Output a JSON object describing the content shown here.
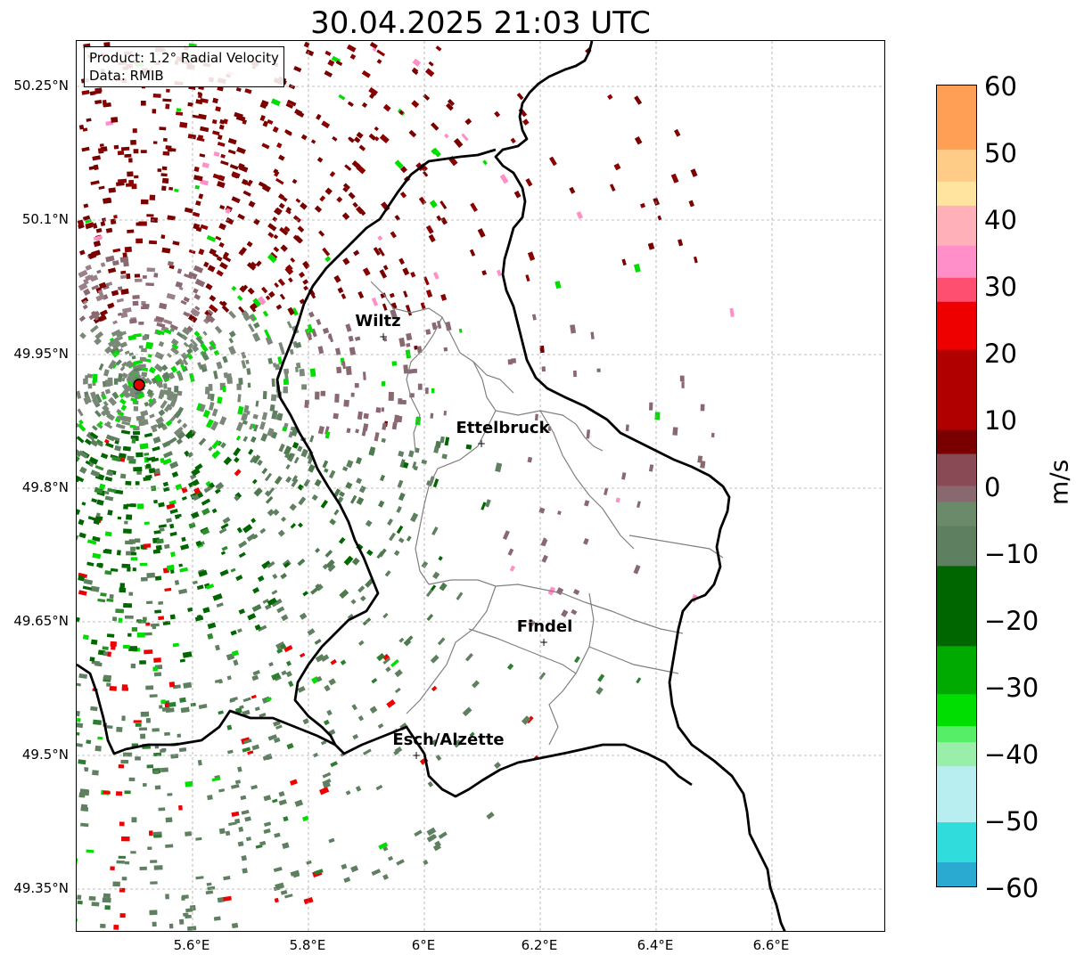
{
  "title": "30.04.2025 21:03 UTC",
  "info": {
    "product": "Product: 1.2° Radial Velocity",
    "data": "Data: RMIB"
  },
  "axes": {
    "lat_ticks": [
      "50.25°N",
      "50.1°N",
      "49.95°N",
      "49.8°N",
      "49.65°N",
      "49.5°N",
      "49.35°N"
    ],
    "lon_ticks": [
      "5.6°E",
      "5.8°E",
      "6°E",
      "6.2°E",
      "6.4°E",
      "6.6°E"
    ]
  },
  "cities": [
    {
      "name": "Wiltz"
    },
    {
      "name": "Ettelbruck"
    },
    {
      "name": "Findel"
    },
    {
      "name": "Esch/Alzette"
    }
  ],
  "radar_site_color": "#e00000",
  "colorbar": {
    "unit": "m/s",
    "ticks": [
      "60",
      "50",
      "40",
      "30",
      "20",
      "10",
      "0",
      "−10",
      "−20",
      "−30",
      "−40",
      "−50",
      "−60"
    ],
    "colors": {
      "orange": "#ff9f55",
      "pink": "#ff8fc8",
      "red": "#ee0000",
      "darkred": "#7a0000",
      "grey-red": "#8a6870",
      "grey-green": "#5f8060",
      "darkgreen": "#006600",
      "green": "#00dd00",
      "cyan": "#30dcdc",
      "blue": "#1f7fc0"
    }
  }
}
